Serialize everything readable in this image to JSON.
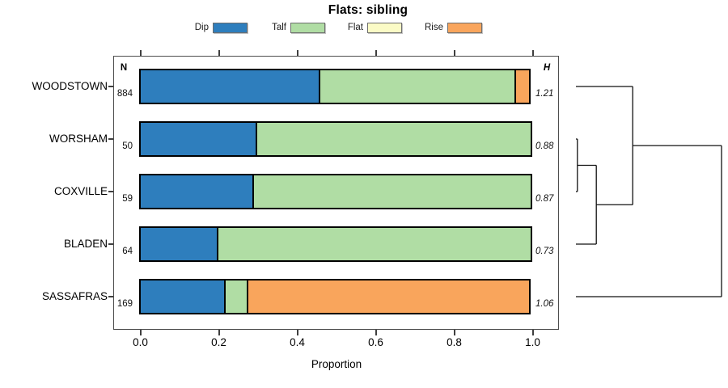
{
  "title": "Flats: sibling",
  "legend": {
    "items": [
      {
        "label": "Dip",
        "color": "#2e7ebd"
      },
      {
        "label": "Talf",
        "color": "#b0dda4"
      },
      {
        "label": "Flat",
        "color": "#fbfbc6"
      },
      {
        "label": "Rise",
        "color": "#f9a55c"
      }
    ]
  },
  "columns": {
    "n_header": "N",
    "h_header": "H"
  },
  "axis": {
    "label": "Proportion",
    "ticks": [
      "0.0",
      "0.2",
      "0.4",
      "0.6",
      "0.8",
      "1.0"
    ],
    "tick_values": [
      0,
      0.2,
      0.4,
      0.6,
      0.8,
      1.0
    ]
  },
  "chart_data": {
    "type": "bar",
    "orientation": "horizontal-stacked",
    "title": "Flats: sibling",
    "xlabel": "Proportion",
    "xlim": [
      0,
      1
    ],
    "grid": false,
    "legend_position": "top",
    "categories": [
      "WOODSTOWN",
      "WORSHAM",
      "COXVILLE",
      "BLADEN",
      "SASSAFRAS"
    ],
    "n": [
      884,
      50,
      59,
      64,
      169
    ],
    "n_display": [
      "884",
      "50",
      "59",
      "64",
      "169"
    ],
    "entropy_h": [
      1.21,
      0.88,
      0.87,
      0.73,
      1.06
    ],
    "h_display": [
      "1.21",
      "0.88",
      "0.87",
      "0.73",
      "1.06"
    ],
    "series": [
      {
        "name": "Dip",
        "color": "#2e7ebd",
        "values": [
          0.46,
          0.3,
          0.29,
          0.2,
          0.22
        ]
      },
      {
        "name": "Talf",
        "color": "#b0dda4",
        "values": [
          0.5,
          0.7,
          0.71,
          0.8,
          0.06
        ]
      },
      {
        "name": "Flat",
        "color": "#fbfbc6",
        "values": [
          0,
          0,
          0,
          0,
          0
        ]
      },
      {
        "name": "Rise",
        "color": "#f9a55c",
        "values": [
          0.04,
          0,
          0,
          0,
          0.72
        ]
      }
    ],
    "dendrogram": {
      "leaves": [
        "WOODSTOWN",
        "WORSHAM",
        "COXVILLE",
        "BLADEN",
        "SASSAFRAS"
      ],
      "merges": [
        {
          "members": [
            "WORSHAM",
            "COXVILLE"
          ],
          "height": 0.01
        },
        {
          "members": [
            "prev0",
            "BLADEN"
          ],
          "height": 0.14
        },
        {
          "members": [
            "WOODSTOWN",
            "prev1"
          ],
          "height": 0.39
        },
        {
          "members": [
            "prev2",
            "SASSAFRAS"
          ],
          "height": 1.0
        }
      ]
    }
  }
}
